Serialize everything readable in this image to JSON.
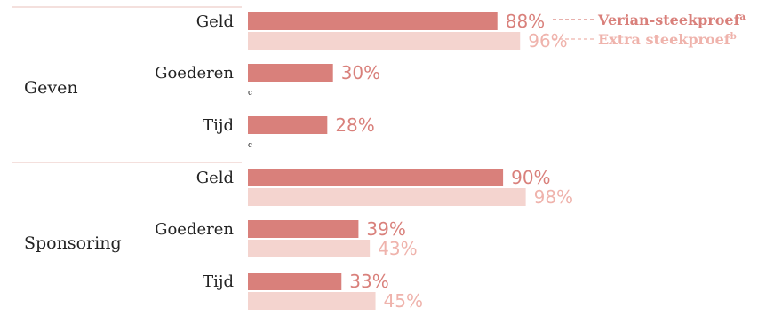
{
  "chart_data": {
    "type": "bar",
    "orientation": "horizontal",
    "title": "",
    "xlabel": "",
    "ylabel": "",
    "xlim": [
      0,
      100
    ],
    "grid": false,
    "legend_position": "top-right",
    "groups": [
      {
        "name": "Geven",
        "categories": [
          {
            "label": "Geld",
            "values": [
              88,
              96
            ],
            "labels": [
              "88%",
              "96%"
            ],
            "note": ""
          },
          {
            "label": "Goederen",
            "values": [
              30,
              null
            ],
            "labels": [
              "30%",
              ""
            ],
            "note": "c"
          },
          {
            "label": "Tijd",
            "values": [
              28,
              null
            ],
            "labels": [
              "28%",
              ""
            ],
            "note": "c"
          }
        ]
      },
      {
        "name": "Sponsoring",
        "categories": [
          {
            "label": "Geld",
            "values": [
              90,
              98
            ],
            "labels": [
              "90%",
              "98%"
            ],
            "note": ""
          },
          {
            "label": "Goederen",
            "values": [
              39,
              43
            ],
            "labels": [
              "39%",
              "43%"
            ],
            "note": ""
          },
          {
            "label": "Tijd",
            "values": [
              33,
              45
            ],
            "labels": [
              "33%",
              "45%"
            ],
            "note": ""
          }
        ]
      }
    ],
    "series": [
      {
        "name": "Verian-steekproef",
        "sup": "a",
        "color": "#d9807b",
        "label_color": "#d9807b"
      },
      {
        "name": "Extra steekproef",
        "sup": "b",
        "color": "#f4d4cf",
        "label_color": "#efb3ac"
      }
    ]
  }
}
